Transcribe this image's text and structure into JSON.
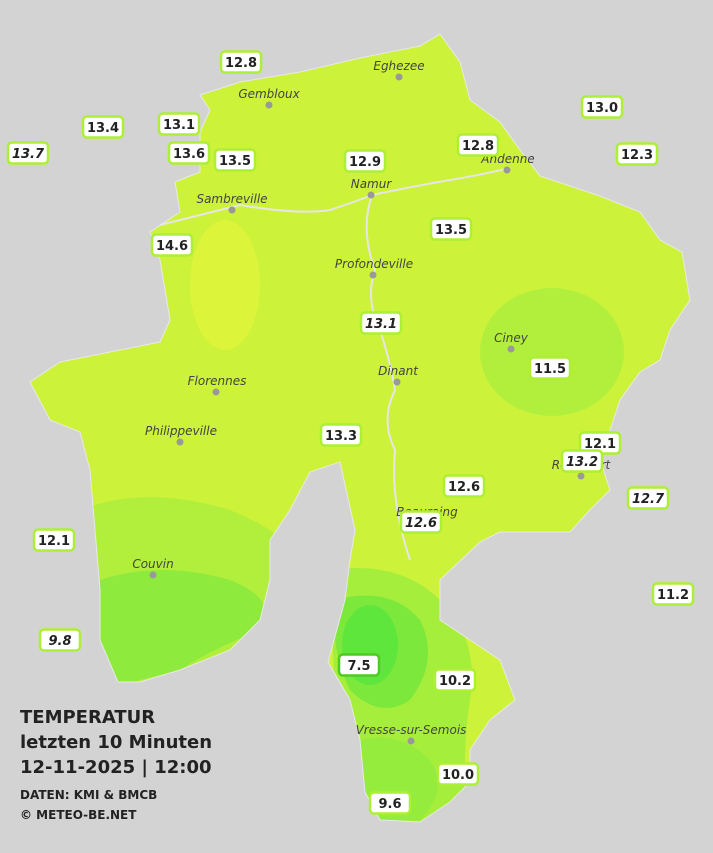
{
  "header": {
    "title": "TEMPERATUR",
    "subtitle": "letzten 10 Minuten",
    "datetime": "12-11-2025  |  12:00",
    "source": "DATEN: KMI & BMCB",
    "copyright": "© METEO-BE.NET"
  },
  "cities": [
    "Eghezee",
    "Gembloux",
    "Andenne",
    "Namur",
    "Sambreville",
    "Profondeville",
    "Ciney",
    "Dinant",
    "Florennes",
    "Philippeville",
    "Rochefort",
    "Beauraing",
    "Couvin",
    "Vresse-sur-Semois"
  ],
  "stations": [
    {
      "value": "12.8"
    },
    {
      "value": "13.4"
    },
    {
      "value": "13.1"
    },
    {
      "value": "13.7",
      "italic": true
    },
    {
      "value": "13.6"
    },
    {
      "value": "13.5"
    },
    {
      "value": "12.9"
    },
    {
      "value": "12.8"
    },
    {
      "value": "13.0"
    },
    {
      "value": "12.3"
    },
    {
      "value": "14.6"
    },
    {
      "value": "13.5"
    },
    {
      "value": "13.1",
      "italic": true
    },
    {
      "value": "11.5"
    },
    {
      "value": "13.3"
    },
    {
      "value": "12.1"
    },
    {
      "value": "13.2",
      "italic": true
    },
    {
      "value": "12.6"
    },
    {
      "value": "12.6",
      "italic": true
    },
    {
      "value": "12.7",
      "italic": true
    },
    {
      "value": "12.1"
    },
    {
      "value": "11.2"
    },
    {
      "value": "9.8",
      "italic": true
    },
    {
      "value": "7.5",
      "highlight": true
    },
    {
      "value": "10.2"
    },
    {
      "value": "10.0"
    },
    {
      "value": "9.6"
    }
  ]
}
